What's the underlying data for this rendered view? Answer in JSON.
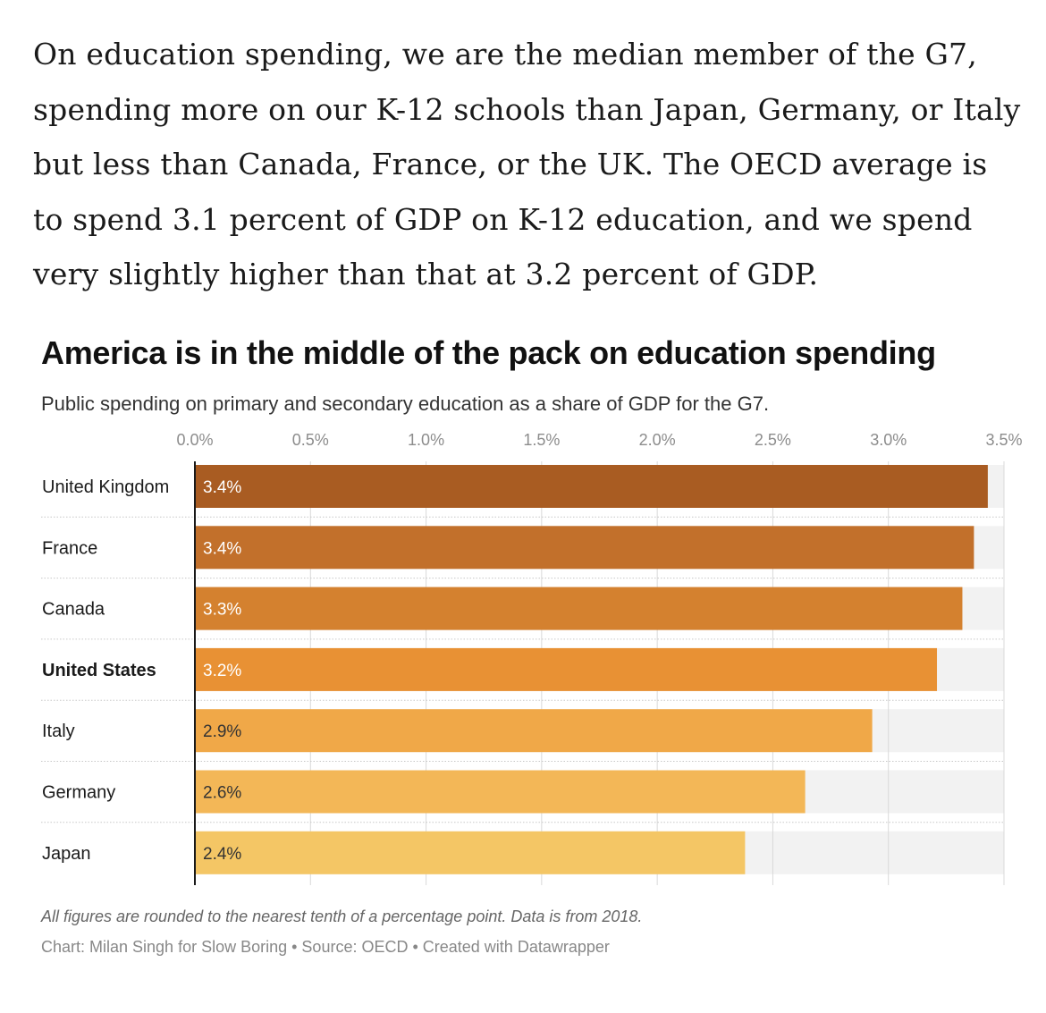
{
  "article": {
    "paragraph": "On education spending, we are the median member of the G7, spending more on our K-12 schools than Japan, Germany, or Italy but less than Canada, France, or the UK. The OECD average is to spend 3.1 percent of GDP on K-12 education, and we spend very slightly higher than that at 3.2 percent of GDP."
  },
  "chart_data": {
    "type": "bar",
    "orientation": "horizontal",
    "title": "America is in the middle of the pack on education spending",
    "subtitle": "Public spending on primary and secondary education as a share of GDP for the G7.",
    "categories": [
      "United Kingdom",
      "France",
      "Canada",
      "United States",
      "Italy",
      "Germany",
      "Japan"
    ],
    "values": [
      3.43,
      3.37,
      3.32,
      3.21,
      2.93,
      2.64,
      2.38
    ],
    "value_labels": [
      "3.4%",
      "3.4%",
      "3.3%",
      "3.2%",
      "2.9%",
      "2.6%",
      "2.4%"
    ],
    "highlight_category": "United States",
    "bar_colors": [
      "#a95c22",
      "#c2702b",
      "#d4812f",
      "#e89134",
      "#f0a848",
      "#f3b757",
      "#f4c665"
    ],
    "xlim": [
      0,
      3.5
    ],
    "xticks": [
      "0.0%",
      "0.5%",
      "1.0%",
      "1.5%",
      "2.0%",
      "2.5%",
      "3.0%",
      "3.5%"
    ],
    "grid": true,
    "xaxis_position": "top",
    "notes": "All figures are rounded to the nearest tenth of a percentage point. Data is from 2018.",
    "credits": "Chart: Milan Singh for Slow Boring • Source: OECD • Created with Datawrapper"
  }
}
